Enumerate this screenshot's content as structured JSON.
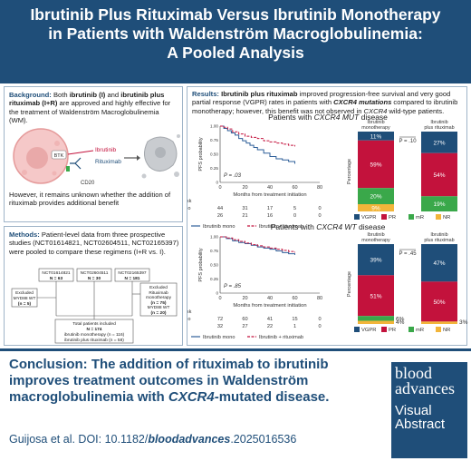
{
  "header": {
    "title_line1": "Ibrutinib Plus Rituximab Versus Ibrutinib Monotherapy",
    "title_line2": "in Patients with Waldenström Macroglobulinemia:",
    "title_line3": "A Pooled Analysis"
  },
  "background": {
    "label": "Background:",
    "text_a": " Both ",
    "b1": "ibrutinib (I)",
    "text_b": " and ",
    "b2": "ibrutinib plus rituximab (I+R)",
    "text_c": " are approved and highly effective for the treatment of Waldenström Macroglobulinemia (WM).",
    "diagram": {
      "btk": "BTK",
      "ibrutinib": "Ibrutinib",
      "rituximab": "Rituximab",
      "cd20": "CD20"
    },
    "text_d": "However, it remains unknown whether the addition of rituximab provides additional benefit"
  },
  "methods": {
    "label": "Methods:",
    "text": " Patient-level data from three prospective studies (NCT01614821, NCT02604511, NCT02165397) were pooled to compare these regimens (I+R vs. I).",
    "flow": {
      "s1_name": "NCT01614821",
      "s1_n": "N = 63",
      "s2_name": "NCT02604511",
      "s2_n": "N = 30",
      "s3_name": "NCT02165397",
      "s3_n": "N = 181",
      "excl1_a": "Excluded",
      "excl1_b": "MYD88 WT",
      "excl1_c": "(n = 5)",
      "excl2_a": "Excluded",
      "excl2_b": "Rituximab",
      "excl2_c": "monotherapy",
      "excl2_d": "(n = 75)",
      "excl2_e": "MYD88 WT",
      "excl2_f": "(n = 20)",
      "total_a": "Total patients included",
      "total_b": "N = 174",
      "total_c": "ibrutinib monotherapy (n = 116)",
      "total_d": "ibrutinib plus rituximab (n = 58)"
    }
  },
  "results": {
    "label": "Results:",
    "b1": " Ibrutinib plus rituximab",
    "text_a": " improved progression-free survival and very good partial response (VGPR) rates in patients with ",
    "b2": "CXCR4 mutations",
    "text_b": " compared to ibrutinib monotherapy; however, this benefit was not observed in ",
    "i1": "CXCR4",
    "text_c": " wild-type patients."
  },
  "mut_section": {
    "title_pre": "Patients with ",
    "title_em": "CXCR4 MUT",
    "title_post": " disease"
  },
  "wt_section": {
    "title_pre": "Patients with ",
    "title_em": "CXCR4 WT",
    "title_post": " disease"
  },
  "chart_data": [
    {
      "type": "line",
      "title": "Patients with CXCR4 MUT disease",
      "ylabel": "PFS probability",
      "xlabel": "Months from treatment initiation",
      "xlim": [
        0,
        80
      ],
      "ylim": [
        0,
        1
      ],
      "xticks": [
        "0",
        "20",
        "40",
        "60",
        "80"
      ],
      "yticks": [
        "0",
        "0.25",
        "0.50",
        "0.75",
        "1.00"
      ],
      "p_value": "P = .03",
      "series": [
        {
          "name": "Ibrutinib mono",
          "x": [
            0,
            3,
            6,
            9,
            12,
            15,
            18,
            21,
            24,
            27,
            30,
            35,
            40,
            45,
            50,
            55,
            60
          ],
          "y": [
            1.0,
            0.96,
            0.92,
            0.88,
            0.84,
            0.78,
            0.74,
            0.7,
            0.66,
            0.62,
            0.58,
            0.52,
            0.46,
            0.42,
            0.4,
            0.37,
            0.33
          ]
        },
        {
          "name": "Ibrutinib + rituximab",
          "x": [
            0,
            3,
            6,
            10,
            15,
            20,
            25,
            30,
            35,
            40,
            45,
            50,
            55,
            60
          ],
          "y": [
            1.0,
            0.98,
            0.95,
            0.9,
            0.86,
            0.82,
            0.8,
            0.78,
            0.74,
            0.72,
            0.7,
            0.68,
            0.66,
            0.64
          ]
        }
      ],
      "risk_table": {
        "heading": "Number at risk",
        "rows": [
          {
            "label": "Ibrutinib mono",
            "values": [
              "44",
              "31",
              "17",
              "5",
              "0"
            ]
          },
          {
            "label": "Ibrutinib + R",
            "values": [
              "26",
              "21",
              "16",
              "0",
              "0"
            ]
          }
        ]
      },
      "legend": [
        "Ibrutinib mono",
        "Ibrutinib + rituximab"
      ]
    },
    {
      "type": "bar",
      "title": "Patients with CXCR4 MUT disease",
      "ylabel": "Percentage",
      "categories": [
        "Ibrutinib monotherapy",
        "Ibrutinib plus rituximab"
      ],
      "p_value": "P = .10",
      "series": [
        {
          "name": "VGPR",
          "values": [
            11,
            27
          ]
        },
        {
          "name": "PR",
          "values": [
            59,
            54
          ]
        },
        {
          "name": "mR",
          "values": [
            20,
            19
          ]
        },
        {
          "name": "NR",
          "values": [
            9,
            0
          ]
        }
      ],
      "labels": [
        [
          "11%",
          "59%",
          "20%",
          "9%"
        ],
        [
          "27%",
          "54%",
          "19%",
          ""
        ]
      ]
    },
    {
      "type": "line",
      "title": "Patients with CXCR4 WT disease",
      "ylabel": "PFS probability",
      "xlabel": "Months from treatment initiation",
      "xlim": [
        0,
        80
      ],
      "ylim": [
        0,
        1
      ],
      "xticks": [
        "0",
        "20",
        "40",
        "60",
        "80"
      ],
      "yticks": [
        "0",
        "0.25",
        "0.50",
        "0.75",
        "1.00"
      ],
      "p_value": "P = .85",
      "series": [
        {
          "name": "Ibrutinib mono",
          "x": [
            0,
            5,
            10,
            15,
            20,
            25,
            30,
            35,
            40,
            45,
            50,
            55,
            60
          ],
          "y": [
            1.0,
            0.97,
            0.93,
            0.9,
            0.88,
            0.85,
            0.82,
            0.8,
            0.78,
            0.75,
            0.72,
            0.7,
            0.68
          ]
        },
        {
          "name": "Ibrutinib + rituximab",
          "x": [
            0,
            5,
            10,
            15,
            20,
            25,
            30,
            35,
            40,
            45,
            50,
            55,
            60
          ],
          "y": [
            1.0,
            0.98,
            0.95,
            0.92,
            0.89,
            0.86,
            0.84,
            0.82,
            0.8,
            0.78,
            0.76,
            0.74,
            0.72
          ]
        }
      ],
      "risk_table": {
        "heading": "Number at risk",
        "rows": [
          {
            "label": "Ibrutinib mono",
            "values": [
              "72",
              "60",
              "41",
              "15",
              "0"
            ]
          },
          {
            "label": "Ibrutinib + R",
            "values": [
              "32",
              "27",
              "22",
              "1",
              "0"
            ]
          }
        ]
      },
      "legend": [
        "Ibrutinib mono",
        "Ibrutinib + rituximab"
      ]
    },
    {
      "type": "bar",
      "title": "Patients with CXCR4 WT disease",
      "ylabel": "Percentage",
      "categories": [
        "Ibrutinib monotherapy",
        "Ibrutinib plus rituximab"
      ],
      "p_value": "P = .45",
      "series": [
        {
          "name": "VGPR",
          "values": [
            39,
            47
          ]
        },
        {
          "name": "PR",
          "values": [
            51,
            50
          ]
        },
        {
          "name": "mR",
          "values": [
            6,
            0
          ]
        },
        {
          "name": "NR",
          "values": [
            4,
            3
          ]
        }
      ],
      "labels": [
        [
          "39%",
          "51%",
          "6%",
          "4%"
        ],
        [
          "47%",
          "50%",
          "",
          "3%"
        ]
      ]
    }
  ],
  "bar_colors": {
    "VGPR": "#1f4e79",
    "PR": "#c3123c",
    "mR": "#3aa84a",
    "NR": "#f2b53a"
  },
  "line_colors": {
    "mono": "#2e5f99",
    "combo": "#c3123c"
  },
  "conclusion": {
    "label": "Conclusion:",
    "text_a": " The addition of rituximab to ibrutinib improves treatment outcomes in Waldenström macroglobulinemia with ",
    "em": "CXCR4",
    "text_b": "-mutated disease."
  },
  "citation": {
    "prefix": "Guijosa et al. DOI: 10.1182/",
    "journal": "bloodadvances",
    "suffix": ".2025016536"
  },
  "logo": {
    "line1": "blood",
    "line2": "advances",
    "line3a": "Visual",
    "line3b": "Abstract"
  }
}
